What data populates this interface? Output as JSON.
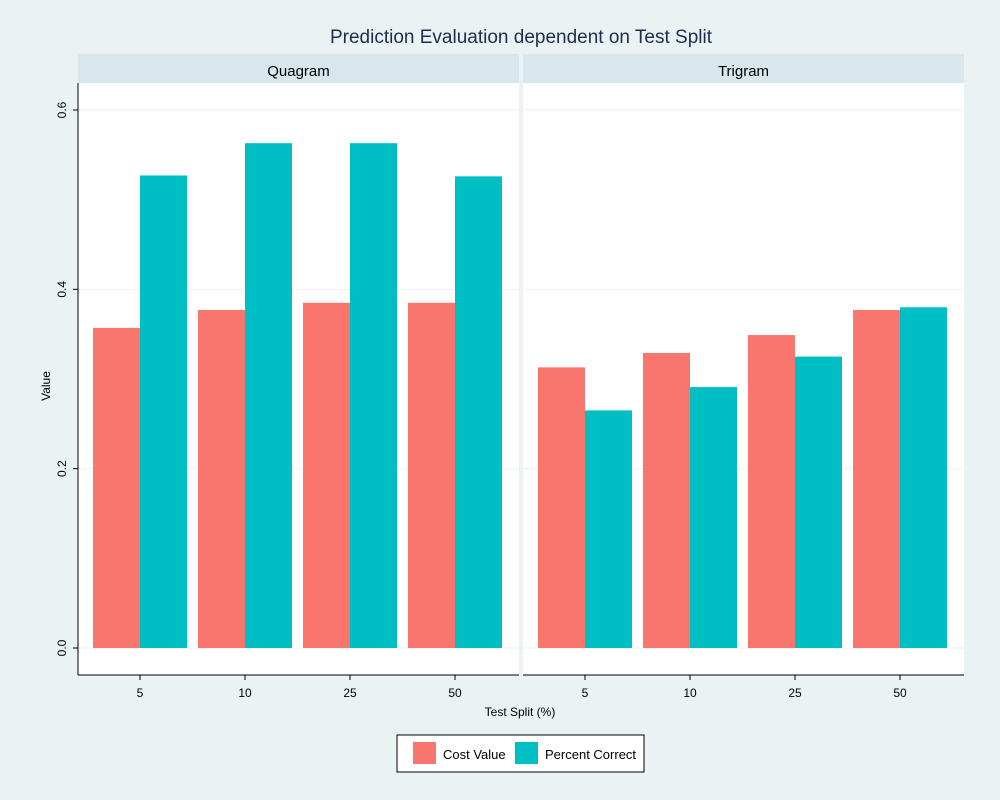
{
  "chart_data": {
    "type": "bar",
    "title": "Prediction Evaluation dependent on Test Split",
    "xlabel": "Test Split (%)",
    "ylabel": "Value",
    "ylim": [
      0,
      0.63
    ],
    "yticks": [
      "0.0",
      "0.2",
      "0.4",
      "0.6"
    ],
    "grid": true,
    "categories": [
      "5",
      "10",
      "25",
      "50"
    ],
    "series_names": [
      "Cost Value",
      "Percent Correct"
    ],
    "colors": {
      "Cost Value": "#f8766d",
      "Percent Correct": "#00bfc4"
    },
    "legend_position": "bottom",
    "panels": [
      {
        "label": "Quagram",
        "series": [
          {
            "name": "Cost Value",
            "values": [
              0.357,
              0.377,
              0.385,
              0.385
            ]
          },
          {
            "name": "Percent Correct",
            "values": [
              0.527,
              0.563,
              0.563,
              0.526
            ]
          }
        ]
      },
      {
        "label": "Trigram",
        "series": [
          {
            "name": "Cost Value",
            "values": [
              0.313,
              0.329,
              0.349,
              0.377
            ]
          },
          {
            "name": "Percent Correct",
            "values": [
              0.265,
              0.291,
              0.325,
              0.38
            ]
          }
        ]
      }
    ]
  }
}
